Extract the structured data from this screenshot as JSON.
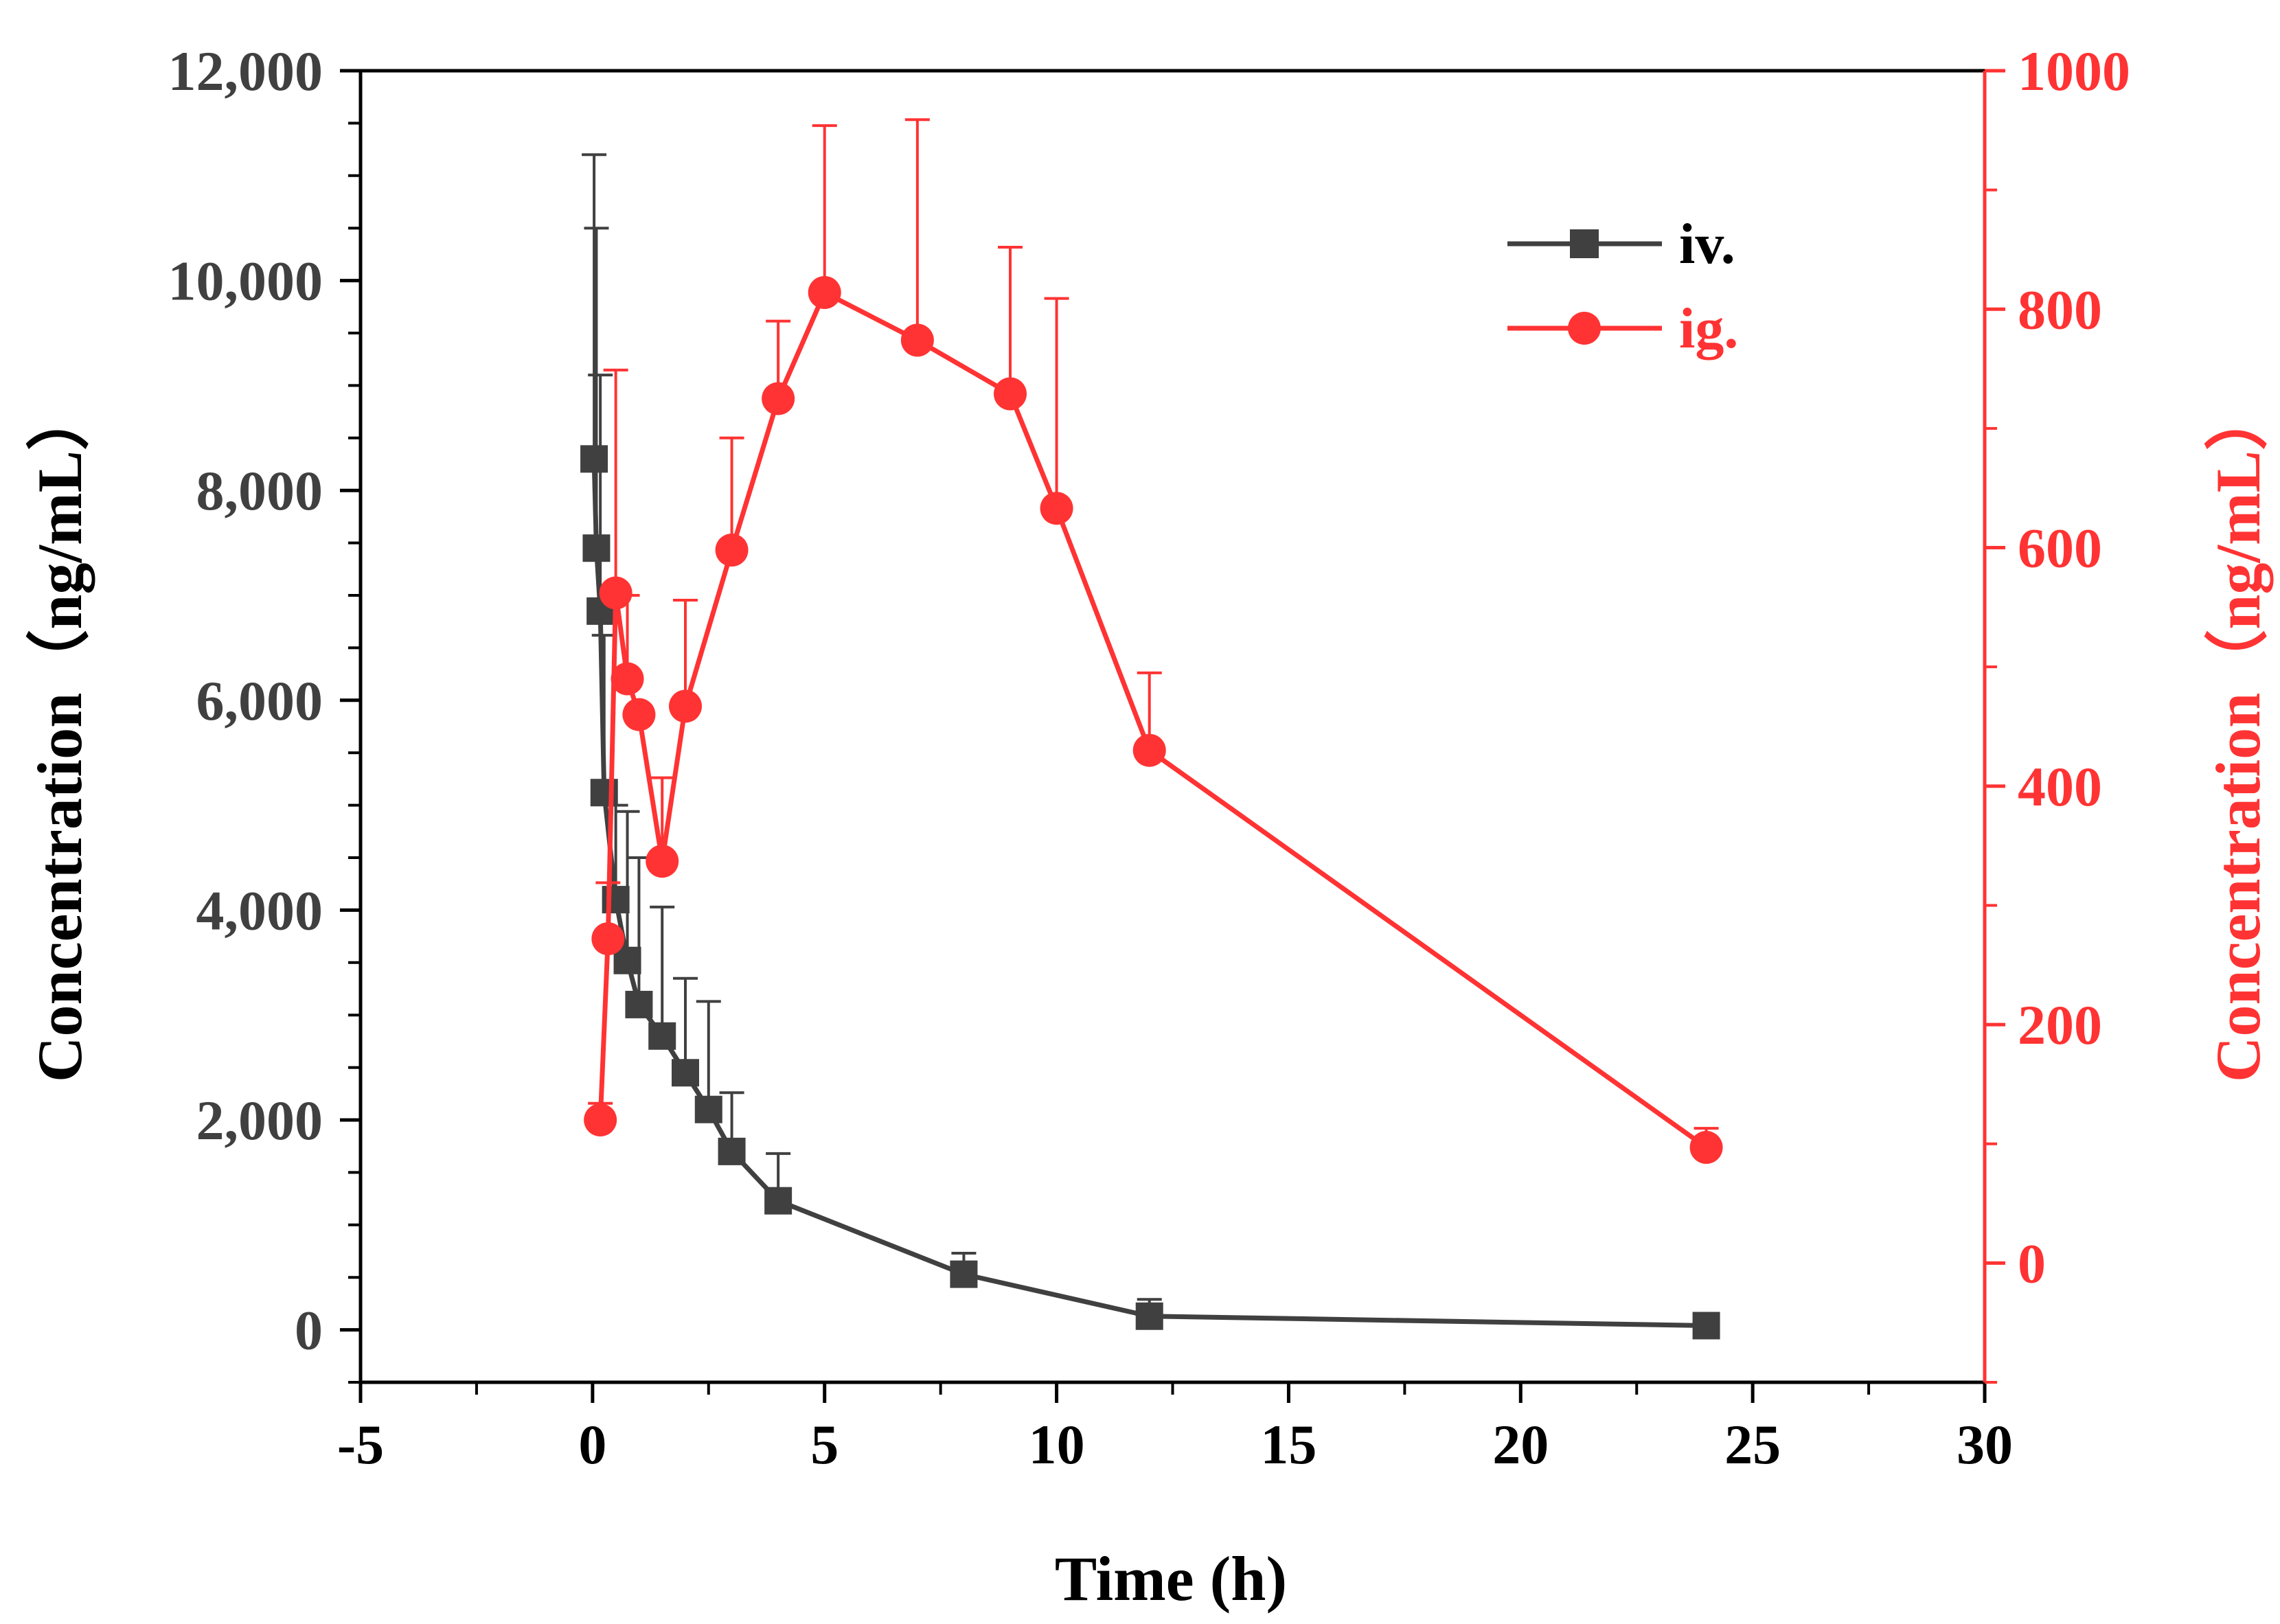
{
  "chart_data": {
    "type": "line",
    "xlabel": "Time (h)",
    "xlim": [
      -5,
      30
    ],
    "x_ticks": [
      "-5",
      "0",
      "5",
      "10",
      "15",
      "20",
      "25",
      "30"
    ],
    "y_left": {
      "label": "Concentration（ng/mL）",
      "ylim": [
        -500,
        12000
      ],
      "ticks": [
        "0",
        "2,000",
        "4,000",
        "6,000",
        "8,000",
        "10,000",
        "12,000"
      ],
      "color": "#404040"
    },
    "y_right": {
      "label": "Concentration（ng/mL）",
      "ylim": [
        -100,
        1000
      ],
      "ticks": [
        "0",
        "200",
        "400",
        "600",
        "800",
        "1000"
      ],
      "color": "#ff3333"
    },
    "series": [
      {
        "name": "iv.",
        "axis": "left",
        "marker": "square",
        "color": "#404040",
        "x": [
          0.033,
          0.083,
          0.167,
          0.25,
          0.5,
          0.75,
          1,
          1.5,
          2,
          2.5,
          3,
          4,
          8,
          12,
          24
        ],
        "y": [
          8300,
          7450,
          6850,
          5120,
          4100,
          3520,
          3100,
          2800,
          2450,
          2100,
          1700,
          1230,
          530,
          130,
          40
        ],
        "err": [
          2900,
          3050,
          2250,
          1500,
          900,
          1420,
          1400,
          1230,
          900,
          1030,
          560,
          450,
          200,
          160,
          30
        ]
      },
      {
        "name": "ig.",
        "axis": "right",
        "marker": "circle",
        "color": "#ff3333",
        "x": [
          0.167,
          0.333,
          0.5,
          0.75,
          1,
          1.5,
          2,
          3,
          4,
          5,
          7,
          9,
          10,
          12,
          24
        ],
        "y": [
          120,
          272,
          562,
          490,
          460,
          337,
          467,
          598,
          725,
          814,
          774,
          729,
          633,
          430,
          97
        ],
        "err": [
          14,
          47,
          187,
          70,
          5,
          70,
          89,
          94,
          65,
          140,
          185,
          123,
          176,
          65,
          16
        ]
      }
    ]
  }
}
